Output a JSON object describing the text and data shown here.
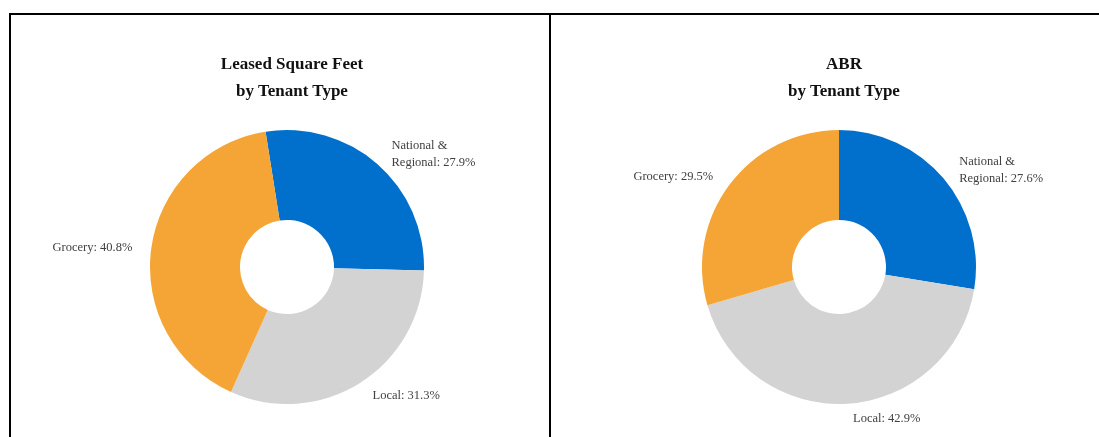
{
  "chart_data": [
    {
      "type": "donut",
      "title": "Leased Square Feet\nby Tenant Type",
      "categories": [
        "National & Regional",
        "Local",
        "Grocery"
      ],
      "values": [
        27.9,
        31.3,
        40.8
      ],
      "colors": [
        "#0070cc",
        "#d3d3d3",
        "#f5a535"
      ],
      "value_labels": [
        "27.9%",
        "31.3%",
        "40.8%"
      ]
    },
    {
      "type": "donut",
      "title": "ABR\nby Tenant Type",
      "categories": [
        "National & Regional",
        "Local",
        "Grocery"
      ],
      "values": [
        27.6,
        42.9,
        29.5
      ],
      "colors": [
        "#0070cc",
        "#d3d3d3",
        "#f5a535"
      ],
      "value_labels": [
        "27.6%",
        "42.9%",
        "29.5%"
      ]
    }
  ]
}
